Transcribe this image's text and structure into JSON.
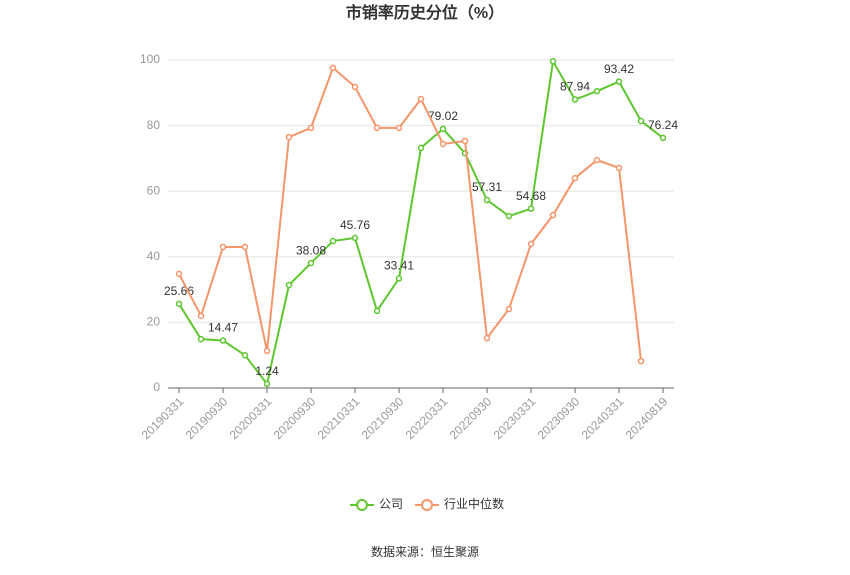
{
  "chart_data": {
    "type": "line",
    "title": "市销率历史分位（%）",
    "categories": [
      "20190331",
      null,
      "20190930",
      null,
      "20200331",
      null,
      "20200930",
      null,
      "20210331",
      null,
      "20210930",
      null,
      "20220331",
      null,
      "20220930",
      null,
      "20230331",
      null,
      "20230930",
      null,
      "20240331",
      null,
      "20240819"
    ],
    "series": [
      {
        "name": "公司",
        "color": "#5ec62f",
        "values": [
          25.66,
          14.9,
          14.47,
          10.0,
          1.24,
          31.4,
          38.08,
          44.8,
          45.76,
          23.5,
          33.41,
          73.2,
          79.02,
          71.6,
          57.31,
          52.4,
          54.68,
          99.6,
          87.94,
          90.5,
          93.42,
          81.4,
          76.24
        ]
      },
      {
        "name": "行业中位数",
        "color": "#f4956a",
        "values": [
          34.8,
          22.0,
          43.0,
          43.0,
          11.3,
          76.5,
          79.3,
          97.6,
          91.8,
          79.3,
          79.3,
          88.1,
          74.4,
          75.3,
          15.2,
          24.1,
          43.9,
          52.7,
          64.0,
          69.5,
          67.1,
          8.2,
          null
        ]
      }
    ],
    "ylim": [
      0,
      100
    ],
    "yticks": [
      0,
      20,
      40,
      60,
      80,
      100
    ],
    "grid": true,
    "source": "数据来源：恒生聚源"
  }
}
